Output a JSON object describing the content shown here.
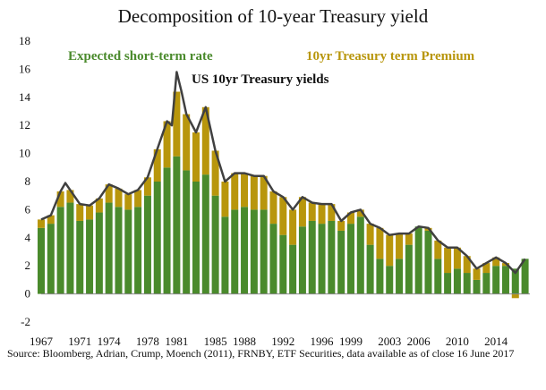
{
  "chart_data": {
    "type": "bar",
    "title": "Decomposition of 10-year Treasury yield",
    "xlabel": "",
    "ylabel": "",
    "ylim": [
      -2,
      18
    ],
    "yticks": [
      -2,
      0,
      2,
      4,
      6,
      8,
      10,
      12,
      14,
      16,
      18
    ],
    "xticks": [
      "1967",
      "1971",
      "1974",
      "1978",
      "1981",
      "1985",
      "1988",
      "1992",
      "1996",
      "1999",
      "2003",
      "2006",
      "2010",
      "2014"
    ],
    "series": [
      {
        "name": "Expected short-term rate",
        "kind": "stacked-bar",
        "color": "#4a8a2c",
        "points": [
          [
            1967.0,
            4.7
          ],
          [
            1968.0,
            5.0
          ],
          [
            1969.0,
            6.2
          ],
          [
            1970.0,
            6.5
          ],
          [
            1971.0,
            5.2
          ],
          [
            1972.0,
            5.3
          ],
          [
            1973.0,
            5.8
          ],
          [
            1974.0,
            6.5
          ],
          [
            1975.0,
            6.2
          ],
          [
            1976.0,
            6.0
          ],
          [
            1977.0,
            6.2
          ],
          [
            1978.0,
            7.0
          ],
          [
            1979.0,
            8.0
          ],
          [
            1980.0,
            9.0
          ],
          [
            1981.0,
            9.8
          ],
          [
            1982.0,
            8.8
          ],
          [
            1983.0,
            8.0
          ],
          [
            1984.0,
            8.5
          ],
          [
            1985.0,
            7.0
          ],
          [
            1986.0,
            5.5
          ],
          [
            1987.0,
            6.0
          ],
          [
            1988.0,
            6.2
          ],
          [
            1989.0,
            6.0
          ],
          [
            1990.0,
            6.0
          ],
          [
            1991.0,
            5.0
          ],
          [
            1992.0,
            4.2
          ],
          [
            1993.0,
            3.5
          ],
          [
            1994.0,
            4.8
          ],
          [
            1995.0,
            5.2
          ],
          [
            1996.0,
            5.0
          ],
          [
            1997.0,
            5.2
          ],
          [
            1998.0,
            4.5
          ],
          [
            1999.0,
            5.0
          ],
          [
            2000.0,
            5.5
          ],
          [
            2001.0,
            3.5
          ],
          [
            2002.0,
            2.5
          ],
          [
            2003.0,
            2.0
          ],
          [
            2004.0,
            2.5
          ],
          [
            2005.0,
            3.5
          ],
          [
            2006.0,
            4.8
          ],
          [
            2007.0,
            4.5
          ],
          [
            2008.0,
            2.5
          ],
          [
            2009.0,
            1.5
          ],
          [
            2010.0,
            1.8
          ],
          [
            2011.0,
            1.5
          ],
          [
            2012.0,
            1.0
          ],
          [
            2013.0,
            1.5
          ],
          [
            2014.0,
            2.0
          ],
          [
            2015.0,
            2.0
          ],
          [
            2016.0,
            1.8
          ],
          [
            2017.0,
            2.5
          ]
        ]
      },
      {
        "name": "10yr Treasury term Premium",
        "kind": "stacked-bar",
        "color": "#b8960c",
        "points": [
          [
            1967.0,
            0.6
          ],
          [
            1968.0,
            0.6
          ],
          [
            1969.0,
            1.1
          ],
          [
            1970.0,
            0.9
          ],
          [
            1971.0,
            1.2
          ],
          [
            1972.0,
            1.0
          ],
          [
            1973.0,
            1.0
          ],
          [
            1974.0,
            1.3
          ],
          [
            1975.0,
            1.3
          ],
          [
            1976.0,
            1.1
          ],
          [
            1977.0,
            1.2
          ],
          [
            1978.0,
            1.3
          ],
          [
            1979.0,
            2.3
          ],
          [
            1980.0,
            3.3
          ],
          [
            1981.0,
            4.6
          ],
          [
            1982.0,
            4.0
          ],
          [
            1983.0,
            3.5
          ],
          [
            1984.0,
            4.8
          ],
          [
            1985.0,
            3.2
          ],
          [
            1986.0,
            2.5
          ],
          [
            1987.0,
            2.6
          ],
          [
            1988.0,
            2.4
          ],
          [
            1989.0,
            2.4
          ],
          [
            1990.0,
            2.4
          ],
          [
            1991.0,
            2.3
          ],
          [
            1992.0,
            2.7
          ],
          [
            1993.0,
            2.5
          ],
          [
            1994.0,
            2.1
          ],
          [
            1995.0,
            1.3
          ],
          [
            1996.0,
            1.4
          ],
          [
            1997.0,
            1.2
          ],
          [
            1998.0,
            0.7
          ],
          [
            1999.0,
            0.8
          ],
          [
            2000.0,
            0.5
          ],
          [
            2001.0,
            1.5
          ],
          [
            2002.0,
            2.2
          ],
          [
            2003.0,
            2.2
          ],
          [
            2004.0,
            1.8
          ],
          [
            2005.0,
            0.8
          ],
          [
            2006.0,
            0.0
          ],
          [
            2007.0,
            0.2
          ],
          [
            2008.0,
            1.3
          ],
          [
            2009.0,
            1.8
          ],
          [
            2010.0,
            1.5
          ],
          [
            2011.0,
            1.2
          ],
          [
            2012.0,
            0.8
          ],
          [
            2013.0,
            0.7
          ],
          [
            2014.0,
            0.6
          ],
          [
            2015.0,
            0.2
          ],
          [
            2016.0,
            -0.3
          ],
          [
            2017.0,
            0.0
          ]
        ]
      },
      {
        "name": "US 10yr Treasury yields",
        "kind": "line",
        "color": "#404040",
        "points": [
          [
            1967.0,
            5.3
          ],
          [
            1968.0,
            5.6
          ],
          [
            1969.0,
            7.3
          ],
          [
            1969.5,
            7.9
          ],
          [
            1970.0,
            7.4
          ],
          [
            1971.0,
            6.4
          ],
          [
            1972.0,
            6.3
          ],
          [
            1973.0,
            6.8
          ],
          [
            1974.0,
            7.8
          ],
          [
            1975.0,
            7.5
          ],
          [
            1976.0,
            7.1
          ],
          [
            1977.0,
            7.4
          ],
          [
            1978.0,
            8.3
          ],
          [
            1979.0,
            10.3
          ],
          [
            1980.0,
            12.3
          ],
          [
            1980.5,
            12.0
          ],
          [
            1981.0,
            15.8
          ],
          [
            1981.5,
            14.4
          ],
          [
            1982.0,
            12.8
          ],
          [
            1983.0,
            11.5
          ],
          [
            1984.0,
            13.3
          ],
          [
            1985.0,
            10.2
          ],
          [
            1986.0,
            8.0
          ],
          [
            1987.0,
            8.6
          ],
          [
            1988.0,
            8.6
          ],
          [
            1989.0,
            8.4
          ],
          [
            1990.0,
            8.4
          ],
          [
            1991.0,
            7.3
          ],
          [
            1992.0,
            6.9
          ],
          [
            1993.0,
            6.0
          ],
          [
            1994.0,
            6.9
          ],
          [
            1995.0,
            6.5
          ],
          [
            1996.0,
            6.4
          ],
          [
            1997.0,
            6.4
          ],
          [
            1998.0,
            5.2
          ],
          [
            1999.0,
            5.8
          ],
          [
            2000.0,
            6.0
          ],
          [
            2001.0,
            5.0
          ],
          [
            2002.0,
            4.7
          ],
          [
            2003.0,
            4.2
          ],
          [
            2004.0,
            4.3
          ],
          [
            2005.0,
            4.3
          ],
          [
            2006.0,
            4.8
          ],
          [
            2007.0,
            4.7
          ],
          [
            2008.0,
            3.8
          ],
          [
            2009.0,
            3.3
          ],
          [
            2010.0,
            3.3
          ],
          [
            2011.0,
            2.7
          ],
          [
            2012.0,
            1.8
          ],
          [
            2013.0,
            2.2
          ],
          [
            2014.0,
            2.6
          ],
          [
            2015.0,
            2.2
          ],
          [
            2016.0,
            1.5
          ],
          [
            2017.0,
            2.5
          ]
        ]
      }
    ],
    "legend_placement": "inside-top",
    "source": "Source: Bloomberg, Adrian, Crump, Moench (2011), FRNBY, ETF Securities, data available as of close 16 June 2017"
  }
}
